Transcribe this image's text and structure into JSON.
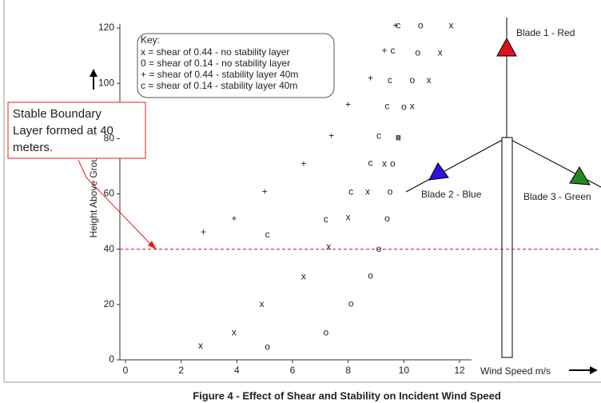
{
  "chart_data": {
    "type": "scatter",
    "caption": "Figure 4 - Effect of Shear and Stability on Incident Wind Speed",
    "x_label": "Wind Speed m/s",
    "y_label": "Height Above Ground",
    "xlim": [
      0,
      12
    ],
    "xticks": [
      0,
      2,
      4,
      6,
      8,
      10,
      12
    ],
    "ylim": [
      0,
      120
    ],
    "yticks": [
      0,
      20,
      40,
      60,
      80,
      100,
      120
    ],
    "legend_title": "Key:",
    "series": [
      {
        "name": "x = shear of 0.44 - no stability layer",
        "marker": "x",
        "color": "#333333",
        "legend_color": "#000000",
        "x": [
          2.7,
          3.9,
          4.9,
          6.4,
          7.3,
          8.0,
          8.7,
          9.3,
          9.8,
          10.3,
          10.9,
          11.3,
          11.7
        ],
        "values": [
          4.9,
          9.8,
          20,
          30,
          40.8,
          51.4,
          60.7,
          70.8,
          80.3,
          91.6,
          100.9,
          111,
          120.8
        ]
      },
      {
        "name": "0 = shear of 0.14 - no stability layer",
        "marker": "o",
        "color": "#333333",
        "legend_color": "#000000",
        "x": [
          5.1,
          7.2,
          8.1,
          8.8,
          9.1,
          9.4,
          9.5,
          9.6,
          9.8,
          10.0,
          10.3,
          10.5,
          10.6
        ],
        "values": [
          4.6,
          9.8,
          20.2,
          30.3,
          39.9,
          50.9,
          60.7,
          70.8,
          80.3,
          91.3,
          100.9,
          111,
          120.8
        ]
      },
      {
        "name": "+ = shear of 0.44 - stability layer 40m",
        "marker": "+",
        "color": "#3333dd",
        "legend_color": "#3333dd",
        "x": [
          2.8,
          3.9,
          5.0,
          6.4,
          7.4,
          8.0,
          8.8,
          9.3,
          9.7
        ],
        "values": [
          46,
          50.9,
          60.7,
          70.8,
          80.9,
          92.2,
          101.7,
          111.6,
          120.8
        ]
      },
      {
        "name": "c = shear of 0.14 - stability layer 40m",
        "marker": "c",
        "color": "#dd2222",
        "legend_color": "#dd2222",
        "x": [
          5.1,
          7.2,
          8.1,
          8.8,
          9.1,
          9.4,
          9.5,
          9.6,
          9.8
        ],
        "values": [
          45.1,
          50.6,
          60.7,
          71.1,
          80.9,
          91.6,
          100.9,
          111.6,
          120.8
        ]
      }
    ],
    "reference_line": {
      "value": 40,
      "color": "#dd2222"
    },
    "annotation_lines": [
      "Stable Boundary",
      "Layer formed at 40",
      "meters."
    ],
    "blade_labels": [
      "Blade 1 - Red",
      "Blade 2 - Blue",
      "Blade 3 - Green"
    ]
  }
}
